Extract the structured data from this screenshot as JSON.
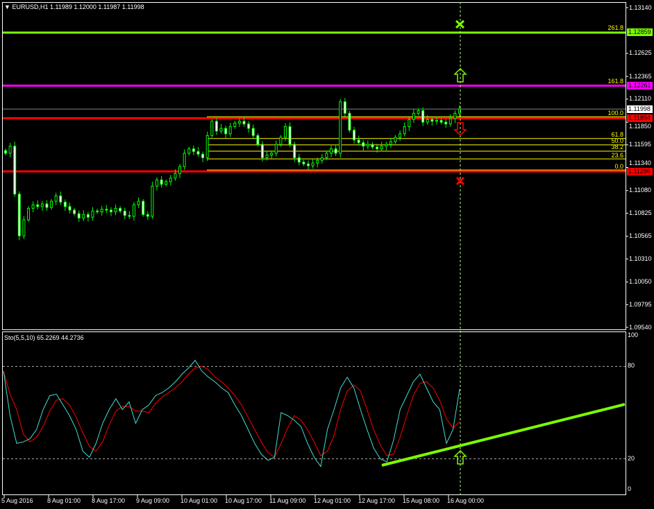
{
  "header": {
    "menu_icon": "triangle-down-icon",
    "symbol": "EURUSD,H1",
    "ohlc": "1.11989 1.12000 1.11987 1.11998"
  },
  "indicator": {
    "label": "Sto(5,5,10) 65.2269 44.2736",
    "levels": [
      80,
      20
    ],
    "axis": [
      "100",
      "80",
      "20",
      "0"
    ],
    "main_color": "#40e0d0",
    "signal_color": "#ff0000"
  },
  "price_axis": {
    "ticks": [
      "1.13140",
      "1.12625",
      "1.12365",
      "1.12110",
      "1.11850",
      "1.11595",
      "1.11340",
      "1.11080",
      "1.10825",
      "1.10565",
      "1.10310",
      "1.10050",
      "1.09795",
      "1.09540"
    ],
    "labels": [
      {
        "value": "1.12859",
        "bg": "#7cfc00",
        "fg": "#000000"
      },
      {
        "value": "1.12261",
        "bg": "#ff00ff",
        "fg": "#000000"
      },
      {
        "value": "1.11998",
        "bg": "#ffffff",
        "fg": "#000000"
      },
      {
        "value": "1.11894",
        "bg": "#ff0000",
        "fg": "#000000"
      },
      {
        "value": "1.11296",
        "bg": "#ff0000",
        "fg": "#000000"
      }
    ]
  },
  "fibonacci": [
    {
      "level": "261.8",
      "price": 1.12859
    },
    {
      "level": "161.8",
      "price": 1.12261
    },
    {
      "level": "100.0",
      "price": 1.11894
    },
    {
      "level": "61.8",
      "price": 1.11666
    },
    {
      "level": "50.0",
      "price": 1.11595
    },
    {
      "level": "38.2",
      "price": 1.11524
    },
    {
      "level": "23.6",
      "price": 1.11437
    },
    {
      "level": "0.0",
      "price": 1.11296
    }
  ],
  "time_axis": [
    "5 Aug 2016",
    "8 Aug 01:00",
    "8 Aug 17:00",
    "9 Aug 09:00",
    "10 Aug 01:00",
    "10 Aug 17:00",
    "11 Aug 09:00",
    "12 Aug 01:00",
    "12 Aug 17:00",
    "15 Aug 08:00",
    "16 Aug 00:00"
  ],
  "colors": {
    "candle": "#00ff00",
    "bid_line": "#778899",
    "fib": "#ffff00",
    "trendline": "#7cfc00"
  },
  "chart_data": {
    "type": "candlestick",
    "symbol": "EURUSD",
    "timeframe": "H1",
    "ylim": [
      1.0954,
      1.1314
    ],
    "closes": [
      1.115,
      1.1158,
      1.1104,
      1.1057,
      1.1075,
      1.1088,
      1.1092,
      1.109,
      1.1093,
      1.1089,
      1.1096,
      1.1102,
      1.1095,
      1.109,
      1.1086,
      1.1082,
      1.1077,
      1.1081,
      1.1078,
      1.1085,
      1.1084,
      1.1087,
      1.1086,
      1.1084,
      1.1088,
      1.1085,
      1.108,
      1.1079,
      1.1092,
      1.1096,
      1.1081,
      1.1079,
      1.1113,
      1.112,
      1.1115,
      1.1118,
      1.1122,
      1.1127,
      1.1135,
      1.115,
      1.1155,
      1.1152,
      1.1149,
      1.1145,
      1.117,
      1.1186,
      1.1175,
      1.1178,
      1.1172,
      1.118,
      1.1184,
      1.1186,
      1.1183,
      1.1178,
      1.117,
      1.116,
      1.1145,
      1.1148,
      1.115,
      1.116,
      1.1168,
      1.118,
      1.116,
      1.1145,
      1.114,
      1.1138,
      1.1136,
      1.1139,
      1.1142,
      1.1145,
      1.115,
      1.1155,
      1.115,
      1.1208,
      1.1195,
      1.1176,
      1.1165,
      1.1162,
      1.1158,
      1.116,
      1.1157,
      1.1155,
      1.1158,
      1.116,
      1.1163,
      1.1168,
      1.1172,
      1.118,
      1.1188,
      1.1195,
      1.1198,
      1.1185,
      1.1188,
      1.1186,
      1.1187,
      1.1185,
      1.1183,
      1.1189,
      1.1195,
      1.11998
    ],
    "horizontal_lines": [
      {
        "price": 1.12859,
        "color": "#7cfc00"
      },
      {
        "price": 1.12261,
        "color": "#ff00ff"
      },
      {
        "price": 1.11998,
        "color": "#778899"
      },
      {
        "price": 1.11894,
        "color": "#ff0000"
      },
      {
        "price": 1.11296,
        "color": "#ff0000"
      }
    ],
    "stochastic": {
      "ylim": [
        0,
        100
      ],
      "main": [
        77,
        48,
        30,
        31,
        33,
        39,
        52,
        61,
        62,
        55,
        48,
        39,
        25,
        21,
        30,
        43,
        52,
        59,
        52,
        57,
        43,
        52,
        55,
        61,
        63,
        66,
        70,
        75,
        79,
        84,
        77,
        73,
        70,
        66,
        63,
        55,
        48,
        39,
        30,
        23,
        19,
        21,
        50,
        48,
        45,
        41,
        30,
        21,
        15,
        39,
        52,
        66,
        73,
        66,
        52,
        39,
        27,
        20,
        18,
        32,
        52,
        61,
        70,
        75,
        66,
        57,
        52,
        30,
        39,
        65.2269
      ],
      "signal": [
        77,
        62,
        52,
        36,
        31,
        34,
        41,
        51,
        58,
        59,
        55,
        47,
        37,
        28,
        25,
        31,
        42,
        51,
        54,
        54,
        51,
        51,
        50,
        56,
        60,
        63,
        66,
        70,
        75,
        79,
        80,
        78,
        73,
        70,
        66,
        61,
        55,
        47,
        39,
        31,
        24,
        21,
        30,
        40,
        48,
        45,
        39,
        31,
        22,
        25,
        35,
        52,
        64,
        68,
        64,
        52,
        39,
        29,
        22,
        23,
        34,
        48,
        61,
        69,
        70,
        66,
        58,
        46,
        40,
        44.2736
      ]
    }
  }
}
